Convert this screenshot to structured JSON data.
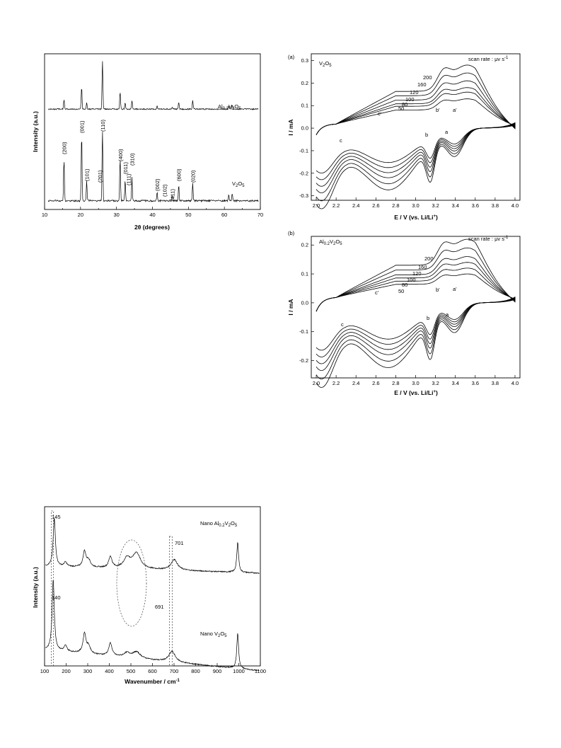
{
  "chart_data": [
    {
      "type": "line",
      "xlabel": "2θ (degrees)",
      "ylabel": "Intensity (a.u.)",
      "xlim": [
        10,
        70
      ],
      "xticks": [
        10,
        20,
        30,
        40,
        50,
        60,
        70
      ],
      "series": [
        {
          "name": "Al0.2V2O5",
          "label_parts": [
            "Al",
            "0.2",
            "V",
            "2",
            "O",
            "5"
          ],
          "peaks": [
            {
              "x": 15.4,
              "h": 0.2
            },
            {
              "x": 20.3,
              "h": 0.45
            },
            {
              "x": 21.7,
              "h": 0.12
            },
            {
              "x": 26.1,
              "h": 0.98
            },
            {
              "x": 31.0,
              "h": 0.35
            },
            {
              "x": 32.4,
              "h": 0.13
            },
            {
              "x": 34.3,
              "h": 0.18
            },
            {
              "x": 41.3,
              "h": 0.06
            },
            {
              "x": 45.5,
              "h": 0.05
            },
            {
              "x": 47.3,
              "h": 0.14
            },
            {
              "x": 51.2,
              "h": 0.17
            },
            {
              "x": 61.2,
              "h": 0.06
            },
            {
              "x": 62.2,
              "h": 0.08
            }
          ]
        },
        {
          "name": "V2O5",
          "label_parts": [
            "V",
            "2",
            "O",
            "5"
          ],
          "peaks": [
            {
              "x": 15.4,
              "h": 0.58
            },
            {
              "x": 20.3,
              "h": 0.95
            },
            {
              "x": 21.7,
              "h": 0.28
            },
            {
              "x": 26.1,
              "h": 1.0
            },
            {
              "x": 31.0,
              "h": 0.6
            },
            {
              "x": 32.4,
              "h": 0.3
            },
            {
              "x": 34.3,
              "h": 0.34
            },
            {
              "x": 41.3,
              "h": 0.12
            },
            {
              "x": 45.5,
              "h": 0.08
            },
            {
              "x": 47.3,
              "h": 0.22
            },
            {
              "x": 51.2,
              "h": 0.25
            },
            {
              "x": 61.2,
              "h": 0.08
            },
            {
              "x": 62.2,
              "h": 0.1
            }
          ]
        }
      ],
      "annotations": [
        {
          "text": "(200)",
          "x": 15.4
        },
        {
          "text": "(001)",
          "x": 20.3
        },
        {
          "text": "(101)",
          "x": 21.7
        },
        {
          "text": "(110)",
          "x": 26.1
        },
        {
          "text": "(201)",
          "x": 25.3
        },
        {
          "text": "(400)",
          "x": 31.0
        },
        {
          "text": "(011)",
          "x": 32.4
        },
        {
          "text": "(111)",
          "x": 33.3
        },
        {
          "text": "(310)",
          "x": 34.3
        },
        {
          "text": "(002)",
          "x": 41.3
        },
        {
          "text": "(102)",
          "x": 43.3
        },
        {
          "text": "(411)",
          "x": 45.5
        },
        {
          "text": "(600)",
          "x": 47.3
        },
        {
          "text": "(020)",
          "x": 51.2
        }
      ]
    },
    {
      "type": "line",
      "panel": "(a)",
      "label_parts": [
        "V",
        "2",
        "O",
        "5"
      ],
      "scan_rate_text": "scan rate : μv s",
      "scan_rate_sup": "-1",
      "xlabel": "E / V (vs. Li/Li",
      "xlabel_sup": "+",
      "xlabel_end": ")",
      "ylabel": "I / mA",
      "xlim": [
        1.95,
        4.05
      ],
      "ylim": [
        -0.32,
        0.33
      ],
      "xticks": [
        2.0,
        2.2,
        2.4,
        2.6,
        2.8,
        3.0,
        3.2,
        3.4,
        3.6,
        3.8,
        4.0
      ],
      "yticks": [
        -0.3,
        -0.2,
        -0.1,
        0.0,
        0.1,
        0.2,
        0.3
      ],
      "rates": [
        "50",
        "80",
        "100",
        "120",
        "160",
        "200"
      ],
      "anodic_peak": [
        0.11,
        0.14,
        0.16,
        0.19,
        0.225,
        0.26
      ],
      "cathodic_min": [
        -0.17,
        -0.195,
        -0.22,
        -0.245,
        -0.275,
        -0.305
      ],
      "peak_labels": [
        "c'",
        "b'",
        "a'",
        "c",
        "b",
        "a"
      ]
    },
    {
      "type": "line",
      "panel": "(b)",
      "label_parts": [
        "Al",
        "0.2",
        "V",
        "2",
        "O",
        "5"
      ],
      "scan_rate_text": "scan rate : μv s",
      "scan_rate_sup": "-1",
      "xlabel": "E / V (vs. Li/Li",
      "xlabel_sup": "+",
      "xlabel_end": ")",
      "ylabel": "I / mA",
      "xlim": [
        1.95,
        4.05
      ],
      "ylim": [
        -0.26,
        0.23
      ],
      "xticks": [
        2.0,
        2.2,
        2.4,
        2.6,
        2.8,
        3.0,
        3.2,
        3.4,
        3.6,
        3.8,
        4.0
      ],
      "yticks": [
        -0.2,
        -0.1,
        0.0,
        0.1,
        0.2
      ],
      "rates": [
        "50",
        "80",
        "100",
        "120",
        "160",
        "200"
      ],
      "anodic_peak": [
        0.08,
        0.1,
        0.12,
        0.14,
        0.17,
        0.2
      ],
      "cathodic_min": [
        -0.14,
        -0.16,
        -0.18,
        -0.2,
        -0.225,
        -0.25
      ],
      "peak_labels": [
        "c'",
        "b'",
        "a'",
        "c",
        "b",
        "a"
      ]
    },
    {
      "type": "line",
      "xlabel": "Wavenumber / cm",
      "xlabel_sup": "-1",
      "ylabel": "Intensity (a.u.)",
      "xlim": [
        100,
        1100
      ],
      "xticks": [
        100,
        200,
        300,
        400,
        500,
        600,
        700,
        800,
        900,
        1000,
        1100
      ],
      "series": [
        {
          "name": "Nano Al0.2V2O5",
          "label_prefix": "Nano ",
          "label_parts": [
            "Al",
            "0.2",
            "V",
            "2",
            "O",
            "5"
          ]
        },
        {
          "name": "Nano V2O5",
          "label_prefix": "Nano ",
          "label_parts": [
            "V",
            "2",
            "O",
            "5"
          ]
        }
      ],
      "annotations": [
        {
          "text": "145",
          "x": 145
        },
        {
          "text": "701",
          "x": 701
        },
        {
          "text": "140",
          "x": 140
        },
        {
          "text": "691",
          "x": 691
        }
      ]
    }
  ]
}
